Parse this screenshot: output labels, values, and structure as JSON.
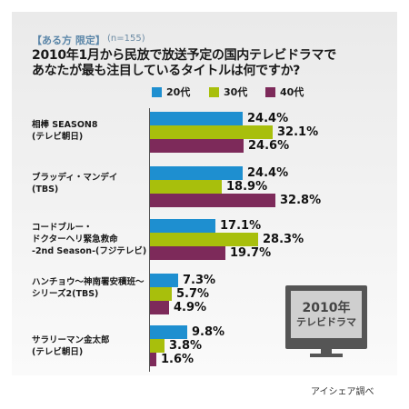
{
  "header": {
    "tag": "【ある方 限定】",
    "sample": "(n=155)",
    "title_lines": [
      "2010年1月から民放で放送予定の国内テレビドラマで",
      "あなたが最も注目しているタイトルは何ですか?"
    ]
  },
  "legend": [
    {
      "label": "20代",
      "color": "#1e8fd0"
    },
    {
      "label": "30代",
      "color": "#a8bf0c"
    },
    {
      "label": "40代",
      "color": "#7d2a5a"
    }
  ],
  "tv": {
    "line1": "2010年",
    "line2": "テレビドラマ"
  },
  "source": "アイシェア調べ",
  "chart_data": {
    "type": "bar",
    "orientation": "horizontal",
    "categories": [
      [
        "相棒 SEASON8",
        "(テレビ朝日)"
      ],
      [
        "ブラッディ・マンデイ",
        "(TBS)"
      ],
      [
        "コードブルー・",
        "ドクターヘリ緊急救命",
        "-2nd Season-(フジテレビ)"
      ],
      [
        "ハンチョウ〜神南署安積班〜",
        "シリーズ2(TBS)"
      ],
      [
        "サラリーマン金太郎",
        "(テレビ朝日)"
      ]
    ],
    "series": [
      {
        "name": "20代",
        "values": [
          24.4,
          24.4,
          17.1,
          7.3,
          9.8
        ],
        "labels": [
          "24.4%",
          "24.4%",
          "17.1%",
          "7.3%",
          "9.8%"
        ]
      },
      {
        "name": "30代",
        "values": [
          32.1,
          18.9,
          28.3,
          5.7,
          3.8
        ],
        "labels": [
          "32.1%",
          "18.9%",
          "28.3%",
          "5.7%",
          "3.8%"
        ]
      },
      {
        "name": "40代",
        "values": [
          24.6,
          32.8,
          19.7,
          4.9,
          1.6
        ],
        "labels": [
          "24.6%",
          "32.8%",
          "19.7%",
          "4.9%",
          "1.6%"
        ]
      }
    ],
    "unit": "%",
    "legend_position": "top",
    "grid": false
  }
}
